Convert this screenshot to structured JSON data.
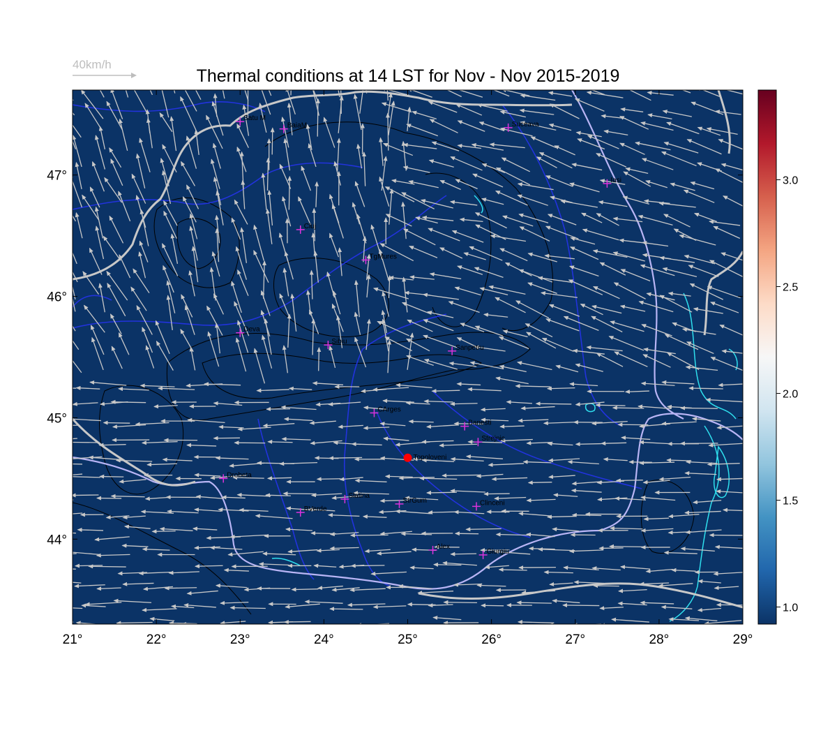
{
  "title": "Thermal conditions at 14 LST for Nov - Nov  2015-2019",
  "wind_reference": {
    "label": "40km/h"
  },
  "map": {
    "lon_range": [
      21,
      29
    ],
    "lat_range": [
      43.3,
      47.7
    ],
    "background_color": "#0b3366",
    "border_color": "#c8c8c8",
    "river_color": "#2233dd",
    "danube_color": "#b9b5f5",
    "lake_color": "#2fe0ee",
    "contour_color": "#000000",
    "arrow_color": "#c8c8c8",
    "marker_color": "#dd33dd",
    "highlight_color": "#ff0000",
    "x_ticks": [
      {
        "value": 21,
        "label": "21°"
      },
      {
        "value": 22,
        "label": "22°"
      },
      {
        "value": 23,
        "label": "23°"
      },
      {
        "value": 24,
        "label": "24°"
      },
      {
        "value": 25,
        "label": "25°"
      },
      {
        "value": 26,
        "label": "26°"
      },
      {
        "value": 27,
        "label": "27°"
      },
      {
        "value": 28,
        "label": "28°"
      },
      {
        "value": 29,
        "label": "29°"
      }
    ],
    "y_ticks": [
      {
        "value": 44,
        "label": "44°"
      },
      {
        "value": 45,
        "label": "45°"
      },
      {
        "value": 46,
        "label": "46°"
      },
      {
        "value": 47,
        "label": "47°"
      }
    ],
    "stations": [
      {
        "name": "Satu M",
        "lon": 23.0,
        "lat": 47.44
      },
      {
        "name": "BaiaM",
        "lon": 23.52,
        "lat": 47.38
      },
      {
        "name": "Suceava",
        "lon": 26.2,
        "lat": 47.39
      },
      {
        "name": "Iasi",
        "lon": 27.38,
        "lat": 46.93
      },
      {
        "name": "Cluj",
        "lon": 23.72,
        "lat": 46.55
      },
      {
        "name": "TgMures",
        "lon": 24.5,
        "lat": 46.3
      },
      {
        "name": "Deva",
        "lon": 23.0,
        "lat": 45.7
      },
      {
        "name": "Sibiu",
        "lon": 24.05,
        "lat": 45.6
      },
      {
        "name": "Sanpetru",
        "lon": 25.53,
        "lat": 45.55
      },
      {
        "name": "CArges",
        "lon": 24.6,
        "lat": 45.04
      },
      {
        "name": "Banesti",
        "lon": 25.68,
        "lat": 44.93
      },
      {
        "name": "Strejnic",
        "lon": 25.84,
        "lat": 44.8
      },
      {
        "name": "Drobeta",
        "lon": 22.8,
        "lat": 44.5
      },
      {
        "name": "Slatina",
        "lon": 24.25,
        "lat": 44.33
      },
      {
        "name": "StrGum",
        "lon": 24.9,
        "lat": 44.29
      },
      {
        "name": "Clinceni",
        "lon": 25.82,
        "lat": 44.27
      },
      {
        "name": "BVerde",
        "lon": 23.72,
        "lat": 44.22
      },
      {
        "name": "Alex",
        "lon": 25.3,
        "lat": 43.91
      },
      {
        "name": "Giurgiu",
        "lon": 25.9,
        "lat": 43.87
      }
    ],
    "highlight_station": {
      "name": "Topoloveni",
      "lon": 25.0,
      "lat": 44.67
    }
  },
  "colorbar": {
    "min": 0.92,
    "max": 3.42,
    "ticks": [
      {
        "value": 1.0,
        "label": "1.0"
      },
      {
        "value": 1.5,
        "label": "1.5"
      },
      {
        "value": 2.0,
        "label": "2.0"
      },
      {
        "value": 2.5,
        "label": "2.5"
      },
      {
        "value": 3.0,
        "label": "3.0"
      }
    ],
    "stops": [
      "#0b3366",
      "#2166ac",
      "#4393c3",
      "#92c5de",
      "#d1e5f0",
      "#f7f7f7",
      "#fddbc7",
      "#f4a582",
      "#d6604d",
      "#b2182b",
      "#67001f"
    ]
  }
}
